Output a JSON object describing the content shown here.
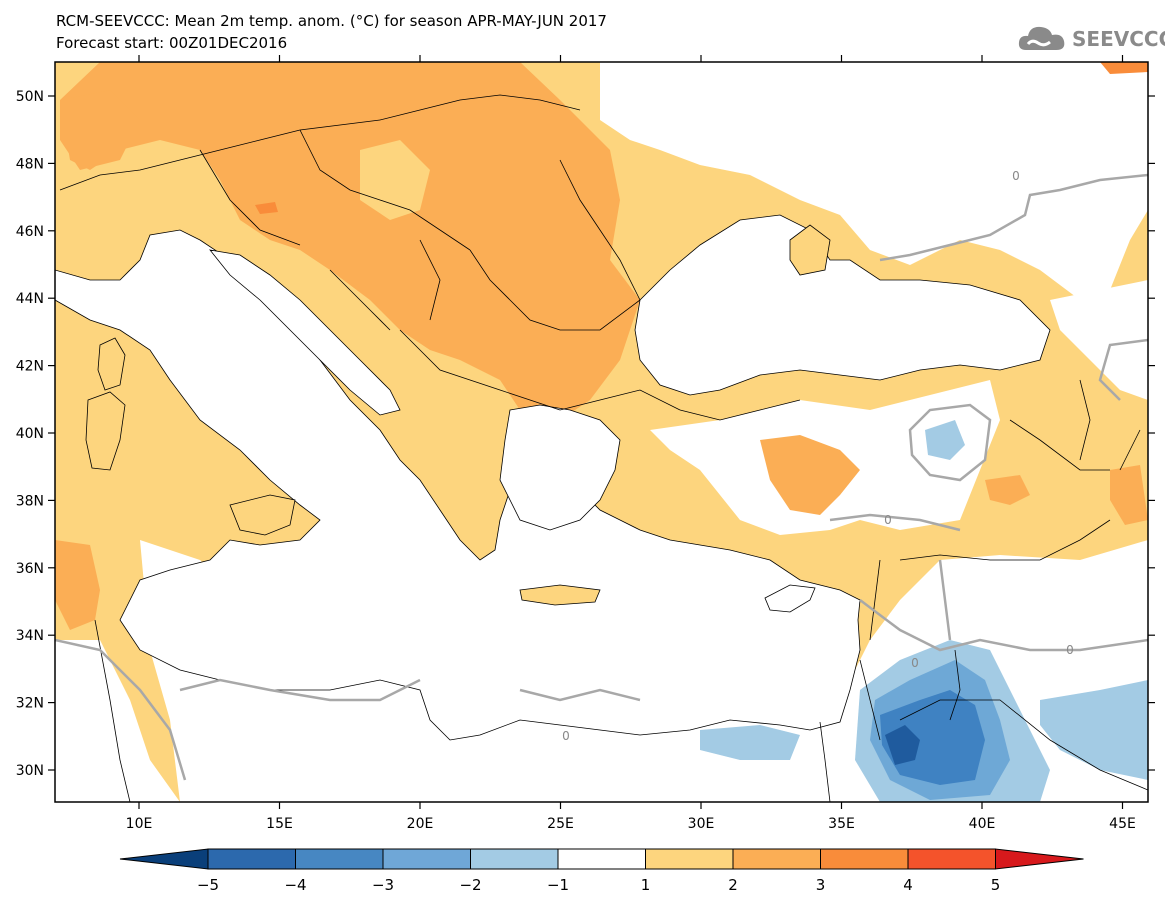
{
  "title": {
    "line1": "RCM-SEEVCCC: Mean 2m temp. anom. (°C) for season APR-MAY-JUN 2017",
    "line2": "Forecast start: 00Z01DEC2016"
  },
  "logo": {
    "text": "SEEVCCC",
    "icon": "cloud-icon"
  },
  "map": {
    "lat_labels": [
      "50N",
      "48N",
      "46N",
      "44N",
      "42N",
      "40N",
      "38N",
      "36N",
      "34N",
      "32N",
      "30N"
    ],
    "lon_labels": [
      "10E",
      "15E",
      "20E",
      "25E",
      "30E",
      "35E",
      "40E",
      "45E"
    ],
    "contour_label": "0",
    "colors": {
      "land": "#fdd57e",
      "warm2": "#fbae55",
      "warm3": "#f98c3a",
      "cool1": "#a3cbe4",
      "cool2": "#6ea8d6",
      "cool3": "#3f82c2",
      "cool4": "#1f5b9e",
      "sea": "#ffffff",
      "contour": "#a8a8a8",
      "border": "#000000"
    }
  },
  "colorbar": {
    "labels": [
      "-5",
      "-4",
      "-3",
      "-2",
      "-1",
      "1",
      "2",
      "3",
      "4",
      "5"
    ],
    "colors": [
      "#0a3f7a",
      "#2c69ad",
      "#4787c2",
      "#6fa7d7",
      "#a3cbe4",
      "#ffffff",
      "#fdd57e",
      "#fbae55",
      "#f98c3a",
      "#f4532b",
      "#d7191c"
    ]
  }
}
